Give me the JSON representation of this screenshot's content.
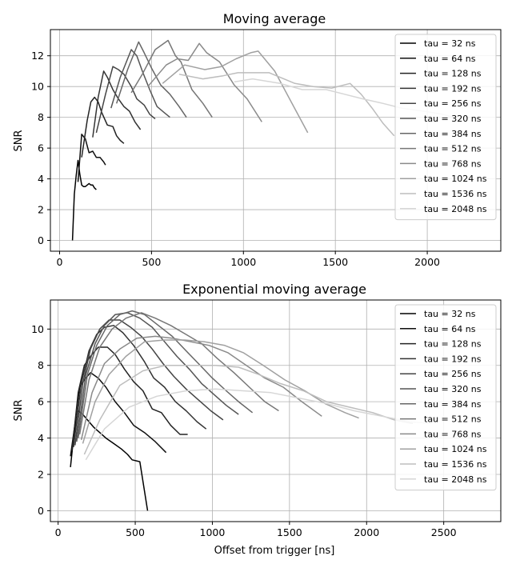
{
  "chart_data": [
    {
      "type": "line",
      "title": "Moving average",
      "xlabel": "",
      "ylabel": "SNR",
      "xlim": [
        -50,
        2400
      ],
      "ylim": [
        -0.7,
        13.7
      ],
      "xticks": [
        0,
        500,
        1000,
        1500,
        2000
      ],
      "yticks": [
        0,
        2,
        4,
        6,
        8,
        10,
        12
      ],
      "grid": true,
      "legend_position": "top-right",
      "series": [
        {
          "name": "tau = 32 ns",
          "color": "#000000",
          "x": [
            70,
            80,
            90,
            100,
            110,
            120,
            130,
            140,
            150,
            160,
            170,
            180,
            190,
            200
          ],
          "y": [
            0.0,
            3.0,
            4.2,
            5.2,
            4.3,
            3.6,
            3.5,
            3.5,
            3.6,
            3.7,
            3.6,
            3.6,
            3.4,
            3.3
          ]
        },
        {
          "name": "tau = 64 ns",
          "color": "#0f0f0f",
          "x": [
            100,
            120,
            140,
            160,
            180,
            200,
            220,
            240,
            250
          ],
          "y": [
            3.8,
            6.9,
            6.6,
            5.7,
            5.8,
            5.4,
            5.4,
            5.1,
            4.9
          ]
        },
        {
          "name": "tau = 128 ns",
          "color": "#232323",
          "x": [
            120,
            150,
            170,
            190,
            210,
            230,
            260,
            290,
            310,
            330,
            350
          ],
          "y": [
            5.4,
            7.8,
            9.0,
            9.3,
            9.0,
            8.3,
            7.5,
            7.4,
            6.8,
            6.5,
            6.3
          ]
        },
        {
          "name": "tau = 192 ns",
          "color": "#333333",
          "x": [
            180,
            210,
            240,
            260,
            290,
            320,
            350,
            380,
            410,
            440
          ],
          "y": [
            6.7,
            9.3,
            11.0,
            10.6,
            9.8,
            9.2,
            8.7,
            8.4,
            7.7,
            7.2
          ]
        },
        {
          "name": "tau = 256 ns",
          "color": "#444444",
          "x": [
            200,
            250,
            290,
            320,
            350,
            390,
            420,
            460,
            490,
            520
          ],
          "y": [
            7.0,
            9.5,
            11.3,
            11.1,
            10.8,
            10.0,
            9.2,
            8.8,
            8.2,
            7.9
          ]
        },
        {
          "name": "tau = 320 ns",
          "color": "#555555",
          "x": [
            280,
            330,
            390,
            420,
            450,
            490,
            530,
            570,
            600
          ],
          "y": [
            8.6,
            10.6,
            12.4,
            12.0,
            11.0,
            9.8,
            8.7,
            8.3,
            8.0
          ]
        },
        {
          "name": "tau = 384 ns",
          "color": "#666666",
          "x": [
            310,
            370,
            430,
            460,
            500,
            550,
            600,
            650,
            690
          ],
          "y": [
            8.9,
            11.1,
            12.9,
            12.2,
            11.2,
            10.1,
            9.5,
            8.7,
            8.0
          ]
        },
        {
          "name": "tau = 512 ns",
          "color": "#777777",
          "x": [
            390,
            450,
            520,
            590,
            630,
            660,
            720,
            780,
            830
          ],
          "y": [
            9.6,
            10.8,
            12.4,
            13.0,
            12.0,
            11.6,
            9.8,
            8.9,
            8.0
          ]
        },
        {
          "name": "tau = 768 ns",
          "color": "#8a8a8a",
          "x": [
            480,
            580,
            640,
            700,
            760,
            800,
            870,
            950,
            1020,
            1100
          ],
          "y": [
            10.0,
            11.4,
            11.8,
            11.7,
            12.8,
            12.2,
            11.6,
            10.1,
            9.2,
            7.7
          ]
        },
        {
          "name": "tau = 1024 ns",
          "color": "#a0a0a0",
          "x": [
            560,
            680,
            790,
            880,
            960,
            1040,
            1080,
            1170,
            1260,
            1350
          ],
          "y": [
            10.2,
            11.4,
            11.1,
            11.3,
            11.8,
            12.2,
            12.3,
            11.0,
            9.0,
            7.0
          ]
        },
        {
          "name": "tau = 1536 ns",
          "color": "#bdbdbd",
          "x": [
            650,
            780,
            890,
            970,
            1040,
            1140,
            1280,
            1380,
            1480,
            1580,
            1640,
            1700,
            1760,
            1820
          ],
          "y": [
            10.8,
            10.5,
            10.7,
            10.9,
            10.9,
            10.9,
            10.2,
            10.0,
            9.9,
            10.2,
            9.5,
            8.6,
            7.6,
            6.8
          ]
        },
        {
          "name": "tau = 2048 ns",
          "color": "#d6d6d6",
          "x": [
            950,
            1050,
            1200,
            1320,
            1450,
            1550,
            1650,
            1760,
            1860,
            1980,
            2080,
            2150
          ],
          "y": [
            10.3,
            10.5,
            10.2,
            9.8,
            9.8,
            9.5,
            9.2,
            8.9,
            8.6,
            8.4,
            8.2,
            8.0
          ]
        }
      ]
    },
    {
      "type": "line",
      "title": "Exponential moving average",
      "xlabel": "Offset from trigger [ns]",
      "ylabel": "SNR",
      "xlim": [
        -50,
        2870
      ],
      "ylim": [
        -0.6,
        11.6
      ],
      "xticks": [
        0,
        500,
        1000,
        1500,
        2000,
        2500
      ],
      "yticks": [
        0,
        2,
        4,
        6,
        8,
        10
      ],
      "grid": true,
      "legend_position": "top-right",
      "series": [
        {
          "name": "tau = 32 ns",
          "color": "#000000",
          "x": [
            80,
            100,
            130,
            160,
            190,
            230,
            270,
            310,
            360,
            410,
            450,
            480,
            530,
            580
          ],
          "y": [
            2.4,
            4.0,
            5.5,
            5.3,
            5.0,
            4.6,
            4.3,
            4.0,
            3.7,
            3.4,
            3.1,
            2.8,
            2.7,
            0.0
          ]
        },
        {
          "name": "tau = 64 ns",
          "color": "#0f0f0f",
          "x": [
            80,
            110,
            140,
            170,
            210,
            260,
            310,
            370,
            430,
            490,
            560,
            630,
            700
          ],
          "y": [
            3.0,
            4.8,
            6.8,
            7.2,
            7.6,
            7.3,
            6.8,
            6.0,
            5.4,
            4.7,
            4.3,
            3.8,
            3.2
          ]
        },
        {
          "name": "tau = 128 ns",
          "color": "#232323",
          "x": [
            90,
            130,
            170,
            210,
            260,
            320,
            370,
            430,
            490,
            550,
            610,
            670,
            730,
            790,
            840
          ],
          "y": [
            3.3,
            6.5,
            8.0,
            8.5,
            9.0,
            9.0,
            8.6,
            7.8,
            7.1,
            6.6,
            5.6,
            5.4,
            4.7,
            4.2,
            4.2
          ]
        },
        {
          "name": "tau = 192 ns",
          "color": "#333333",
          "x": [
            100,
            150,
            200,
            250,
            300,
            360,
            420,
            490,
            560,
            620,
            690,
            760,
            830,
            900,
            960
          ],
          "y": [
            3.5,
            7.0,
            8.8,
            9.7,
            10.1,
            10.2,
            9.8,
            9.1,
            8.2,
            7.3,
            6.8,
            6.0,
            5.5,
            4.9,
            4.5
          ]
        },
        {
          "name": "tau = 256 ns",
          "color": "#444444",
          "x": [
            110,
            160,
            210,
            270,
            330,
            400,
            470,
            540,
            610,
            680,
            750,
            830,
            910,
            990,
            1070
          ],
          "y": [
            3.6,
            7.0,
            8.9,
            10.0,
            10.5,
            10.5,
            10.1,
            9.6,
            8.9,
            8.1,
            7.4,
            6.7,
            6.1,
            5.5,
            5.0
          ]
        },
        {
          "name": "tau = 320 ns",
          "color": "#555555",
          "x": [
            120,
            180,
            240,
            300,
            370,
            450,
            530,
            610,
            690,
            770,
            850,
            930,
            1010,
            1090,
            1170
          ],
          "y": [
            3.8,
            7.5,
            9.2,
            10.2,
            10.8,
            10.9,
            10.6,
            10.1,
            9.3,
            8.5,
            7.8,
            7.0,
            6.4,
            5.8,
            5.3
          ]
        },
        {
          "name": "tau = 384 ns",
          "color": "#666666",
          "x": [
            130,
            190,
            250,
            320,
            400,
            480,
            560,
            650,
            740,
            830,
            910,
            1000,
            1090,
            1170,
            1260
          ],
          "y": [
            4.0,
            7.5,
            9.1,
            10.2,
            10.8,
            11.0,
            10.8,
            10.2,
            9.6,
            8.8,
            8.1,
            7.3,
            6.6,
            6.0,
            5.4
          ]
        },
        {
          "name": "tau = 512 ns",
          "color": "#777777",
          "x": [
            140,
            200,
            270,
            350,
            440,
            540,
            630,
            730,
            830,
            930,
            1030,
            1140,
            1240,
            1340,
            1430
          ],
          "y": [
            4.2,
            7.2,
            9.0,
            10.0,
            10.6,
            10.9,
            10.6,
            10.2,
            9.7,
            9.2,
            8.4,
            7.6,
            6.8,
            6.0,
            5.5
          ]
        },
        {
          "name": "tau = 768 ns",
          "color": "#8a8a8a",
          "x": [
            150,
            220,
            300,
            400,
            510,
            630,
            740,
            860,
            980,
            1100,
            1220,
            1340,
            1460,
            1580,
            1710
          ],
          "y": [
            3.9,
            6.5,
            8.1,
            8.9,
            9.5,
            9.6,
            9.5,
            9.3,
            9.1,
            8.7,
            8.0,
            7.3,
            6.8,
            6.0,
            5.2
          ]
        },
        {
          "name": "tau = 1024 ns",
          "color": "#a0a0a0",
          "x": [
            160,
            240,
            330,
            440,
            560,
            690,
            820,
            950,
            1080,
            1200,
            1330,
            1470,
            1600,
            1730,
            1860,
            1950
          ],
          "y": [
            3.7,
            6.0,
            7.5,
            8.5,
            9.3,
            9.4,
            9.4,
            9.3,
            9.1,
            8.7,
            8.0,
            7.2,
            6.6,
            5.9,
            5.4,
            5.1
          ]
        },
        {
          "name": "tau = 1536 ns",
          "color": "#bdbdbd",
          "x": [
            170,
            270,
            400,
            550,
            700,
            860,
            1020,
            1170,
            1300,
            1440,
            1590,
            1740,
            1890,
            2040,
            2180,
            2300
          ],
          "y": [
            3.1,
            5.0,
            6.9,
            7.7,
            8.0,
            8.0,
            8.0,
            7.9,
            7.5,
            7.0,
            6.6,
            6.0,
            5.7,
            5.4,
            5.0,
            4.8
          ]
        },
        {
          "name": "tau = 2048 ns",
          "color": "#d6d6d6",
          "x": [
            180,
            300,
            460,
            640,
            830,
            1020,
            1200,
            1380,
            1560,
            1740,
            1920,
            2100,
            2280,
            2420
          ],
          "y": [
            2.8,
            4.5,
            5.7,
            6.3,
            6.6,
            6.7,
            6.6,
            6.5,
            6.2,
            5.9,
            5.5,
            5.2,
            4.9,
            4.8
          ]
        }
      ]
    }
  ]
}
